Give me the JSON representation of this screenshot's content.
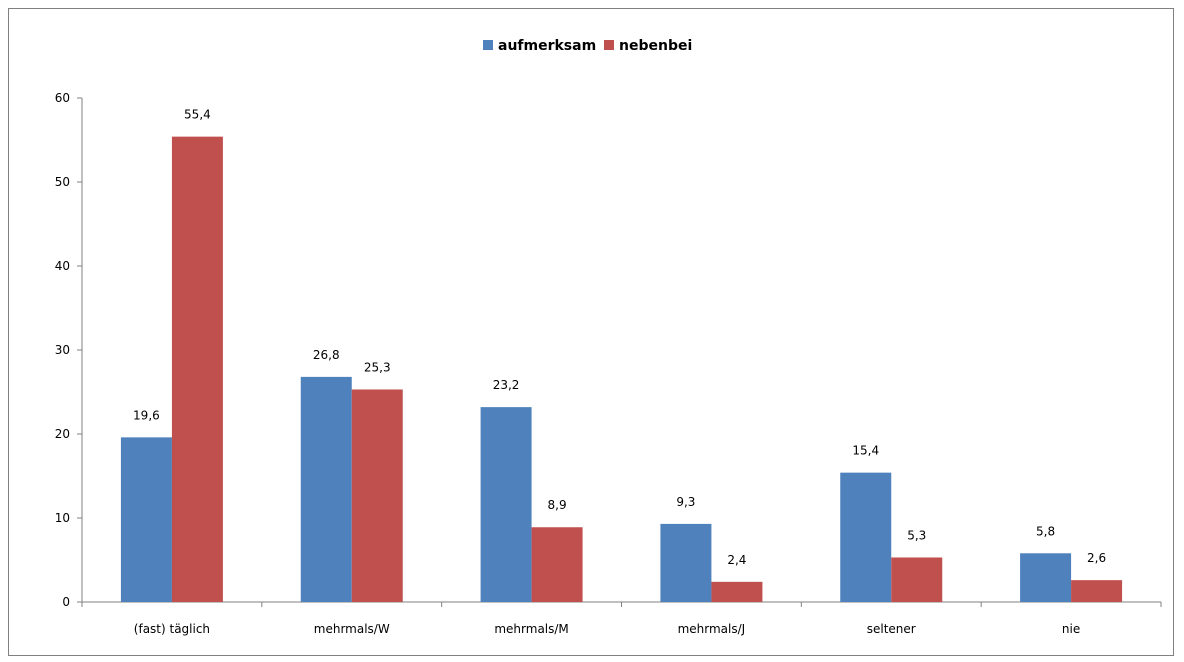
{
  "chart_data": {
    "type": "bar",
    "title": "",
    "xlabel": "",
    "ylabel": "",
    "categories": [
      "(fast) täglich",
      "mehrmals/W",
      "mehrmals/M",
      "mehrmals/J",
      "seltener",
      "nie"
    ],
    "series": [
      {
        "name": "aufmerksam",
        "color": "#4F81BD",
        "values": [
          19.6,
          26.8,
          23.2,
          9.3,
          15.4,
          5.8
        ]
      },
      {
        "name": "nebenbei",
        "color": "#C0504D",
        "values": [
          55.4,
          25.3,
          8.9,
          2.4,
          5.3,
          2.6
        ]
      }
    ],
    "value_labels": [
      [
        "19,6",
        "26,8",
        "23,2",
        "9,3",
        "15,4",
        "5,8"
      ],
      [
        "55,4",
        "25,3",
        "8,9",
        "2,4",
        "5,3",
        "2,6"
      ]
    ],
    "ylim": [
      0,
      60
    ],
    "yticks": [
      0,
      10,
      20,
      30,
      40,
      50,
      60
    ],
    "grid": false,
    "legend_position": "top"
  }
}
